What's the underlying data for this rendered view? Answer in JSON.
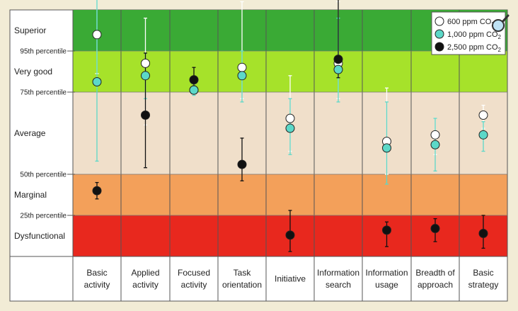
{
  "chart_data": {
    "type": "scatter",
    "title": "",
    "xlabel": "",
    "ylabel": "",
    "categories": [
      "Basic activity",
      "Applied activity",
      "Focused activity",
      "Task orientation",
      "Initiative",
      "Information search",
      "Information usage",
      "Breadth of approach",
      "Basic strategy"
    ],
    "category_lines": [
      [
        "Basic",
        "activity"
      ],
      [
        "Applied",
        "activity"
      ],
      [
        "Focused",
        "activity"
      ],
      [
        "Task",
        "orientation"
      ],
      [
        "Initiative"
      ],
      [
        "Information",
        "search"
      ],
      [
        "Information",
        "usage"
      ],
      [
        "Breadth of",
        "approach"
      ],
      [
        "Basic",
        "strategy"
      ]
    ],
    "zones": [
      {
        "label": "Superior",
        "from": 95,
        "to": 100,
        "color": "#3aaa35"
      },
      {
        "label": "Very good",
        "from": 75,
        "to": 95,
        "color": "#a6e22a"
      },
      {
        "label": "Average",
        "from": 50,
        "to": 75,
        "color": "#f0dfca"
      },
      {
        "label": "Marginal",
        "from": 25,
        "to": 50,
        "color": "#f3a05a"
      },
      {
        "label": "Dysfunctional",
        "from": 0,
        "to": 25,
        "color": "#e8281e"
      }
    ],
    "percentile_marks": [
      {
        "value": 95,
        "label": "95th percentile"
      },
      {
        "value": 75,
        "label": "75th percentile"
      },
      {
        "value": 50,
        "label": "50th percentile"
      },
      {
        "value": 25,
        "label": "25th percentile"
      }
    ],
    "legend_position": "top-right",
    "series": [
      {
        "name": "600 ppm CO2",
        "legend_main": "600 ppm CO",
        "legend_sub": "2",
        "color": "#ffffff",
        "errorbar_color": "#ffffff",
        "values": [
          97,
          89,
          76,
          87,
          67,
          89,
          60,
          62,
          68
        ],
        "err_low": [
          84,
          65,
          74,
          73,
          57,
          73,
          50,
          56,
          64
        ],
        "err_high": [
          108,
          99,
          79,
          101,
          83,
          101,
          77,
          67,
          71
        ]
      },
      {
        "name": "1,000 ppm CO2",
        "legend_main": "1,000 ppm CO",
        "legend_sub": "2",
        "color": "#5cd8c8",
        "errorbar_color": "#5cd8c8",
        "values": [
          80,
          83,
          76,
          83,
          64,
          86,
          58,
          59,
          62
        ],
        "err_low": [
          54,
          73,
          74,
          72,
          56,
          72,
          44,
          51,
          57
        ],
        "err_high": [
          106,
          94,
          79,
          95,
          73,
          99,
          72,
          67,
          66
        ]
      },
      {
        "name": "2,500 ppm CO2",
        "legend_main": "2,500 ppm CO",
        "legend_sub": "2",
        "color": "#111111",
        "errorbar_color": "#111111",
        "values": [
          40,
          68,
          81,
          53,
          13,
          91,
          16,
          17,
          14
        ],
        "err_low": [
          35,
          52,
          78,
          46,
          3,
          82,
          6,
          9,
          5
        ],
        "err_high": [
          45,
          94,
          87,
          61,
          28,
          103,
          21,
          23,
          25
        ]
      }
    ]
  }
}
